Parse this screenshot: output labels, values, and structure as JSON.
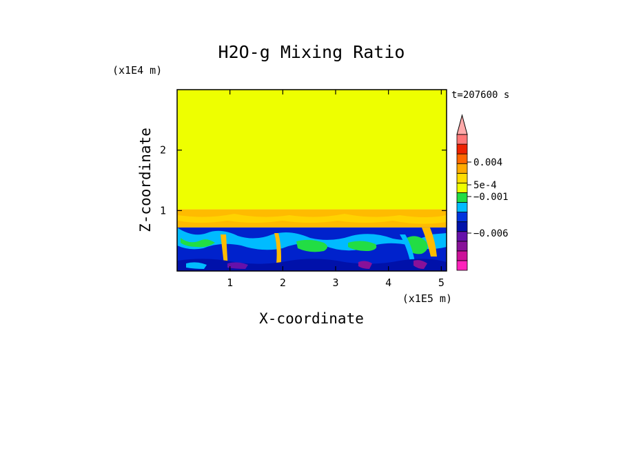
{
  "chart_data": {
    "type": "heatmap",
    "title": "H2O-g Mixing Ratio",
    "xlabel": "X-coordinate",
    "ylabel": "Z-coordinate",
    "x_scale_label": "(x1E5 m)",
    "y_scale_label": "(x1E4 m)",
    "time_label": "t=207600 s",
    "xlim": [
      0,
      5.1
    ],
    "ylim": [
      0,
      3.0
    ],
    "x_ticks": [
      1,
      2,
      3,
      4,
      5
    ],
    "y_ticks": [
      1,
      2
    ],
    "field_layers": [
      {
        "z_from": 1.02,
        "z_to": 3.0,
        "value_band": "near 0",
        "color": "#eeff00"
      },
      {
        "z_from": 0.72,
        "z_to": 1.02,
        "value_band": "5e-4 to 0.004",
        "color": "#ffbb00"
      },
      {
        "z_from": 0.0,
        "z_to": 0.72,
        "value_band": "-0.006 to 0",
        "color": "#0022cc"
      }
    ],
    "colorbar": {
      "colors": [
        "#ff22bb",
        "#cc1199",
        "#881199",
        "#6611aa",
        "#0011aa",
        "#0033dd",
        "#00bbff",
        "#22dd44",
        "#eeff00",
        "#ffdd00",
        "#ffaa00",
        "#ff6600",
        "#ee2200",
        "#ff7777"
      ],
      "labels": [
        {
          "text": "0.004",
          "value": 0.004
        },
        {
          "text": "5e-4",
          "value": 0.0005
        },
        {
          "text": "−0.001",
          "value": -0.001
        },
        {
          "text": "−0.006",
          "value": -0.006
        }
      ],
      "extend": "max"
    }
  }
}
